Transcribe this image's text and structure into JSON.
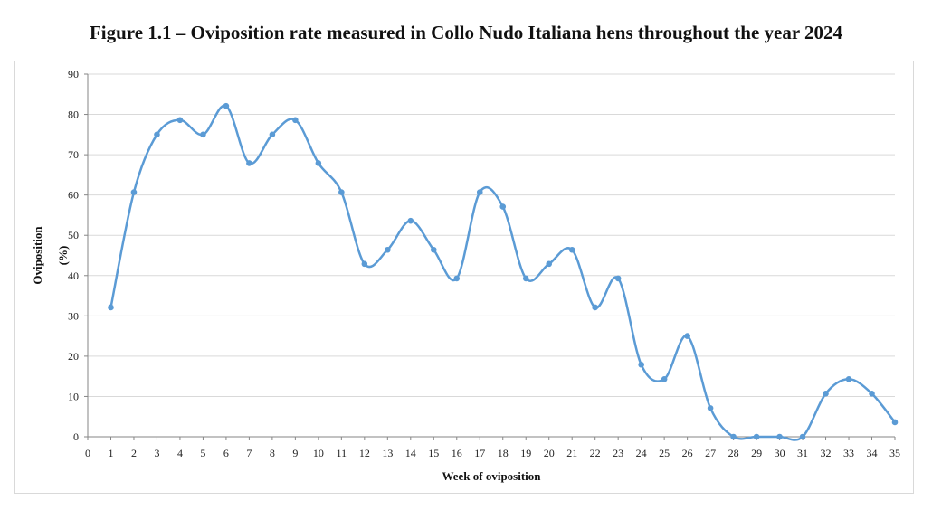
{
  "page": {
    "title": "Figure 1.1 – Oviposition rate measured in Collo Nudo Italiana hens throughout the year 2024"
  },
  "chart_data": {
    "type": "line",
    "title": "Figure 1.1 – Oviposition rate measured in Collo Nudo Italiana hens throughout the year 2024",
    "xlabel": "Week of oviposition",
    "ylabel_lines": [
      "Oviposition",
      "(%)"
    ],
    "xlim": [
      0,
      35
    ],
    "ylim": [
      0,
      90
    ],
    "ytick_step": 10,
    "x_ticks": [
      0,
      1,
      2,
      3,
      4,
      5,
      6,
      7,
      8,
      9,
      10,
      11,
      12,
      13,
      14,
      15,
      16,
      17,
      18,
      19,
      20,
      21,
      22,
      23,
      24,
      25,
      26,
      27,
      28,
      29,
      30,
      31,
      32,
      33,
      34,
      35
    ],
    "y_ticks": [
      0,
      10,
      20,
      30,
      40,
      50,
      60,
      70,
      80,
      90
    ],
    "grid": "horizontal",
    "smooth": true,
    "series": [
      {
        "color": "#5b9bd5",
        "x": [
          1,
          2,
          3,
          4,
          5,
          6,
          7,
          8,
          9,
          10,
          11,
          12,
          13,
          14,
          15,
          16,
          17,
          18,
          19,
          20,
          21,
          22,
          23,
          24,
          25,
          26,
          27,
          28,
          29,
          30,
          31,
          32,
          33,
          34,
          35
        ],
        "y": [
          32.1,
          60.7,
          75,
          78.6,
          75,
          82.1,
          67.9,
          75,
          78.6,
          67.9,
          60.7,
          42.9,
          46.4,
          53.6,
          46.4,
          39.3,
          60.7,
          57.1,
          39.3,
          42.9,
          46.4,
          32.1,
          39.3,
          17.9,
          14.3,
          25,
          7.1,
          0,
          0,
          0,
          0,
          10.7,
          14.3,
          10.7,
          3.6
        ]
      }
    ]
  }
}
